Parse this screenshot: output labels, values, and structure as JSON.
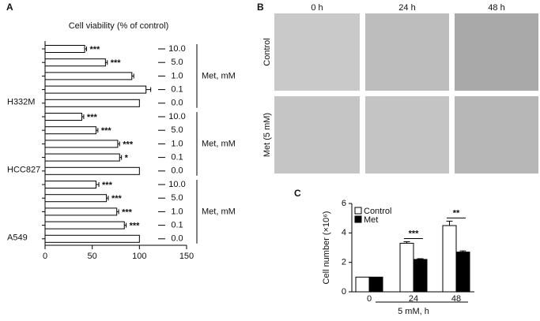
{
  "chart_data": [
    {
      "type": "hbar-groups",
      "panel": "A",
      "title": "Cell viability (% of control)",
      "xlim": [
        0,
        150
      ],
      "xticks": [
        0,
        50,
        100,
        150
      ],
      "groups": [
        {
          "name": "H332M",
          "treatment_label": "Met, mM",
          "categories": [
            "10.0",
            "5.0",
            "1.0",
            "0.1",
            "0.0"
          ],
          "values": [
            42,
            64,
            92,
            107,
            100
          ],
          "errors": [
            2,
            2,
            2,
            5,
            0
          ],
          "annotations": [
            "***",
            "***",
            null,
            null,
            null
          ]
        },
        {
          "name": "HCC827",
          "treatment_label": "Met, mM",
          "categories": [
            "10.0",
            "5.0",
            "1.0",
            "0.1",
            "0.0"
          ],
          "values": [
            39,
            54,
            77,
            79,
            100
          ],
          "errors": [
            2,
            2,
            2,
            2,
            0
          ],
          "annotations": [
            "***",
            "***",
            "***",
            "*",
            null
          ]
        },
        {
          "name": "A549",
          "treatment_label": "Met, mM",
          "categories": [
            "10.0",
            "5.0",
            "1.0",
            "0.1",
            "0.0"
          ],
          "values": [
            54,
            65,
            76,
            84,
            100
          ],
          "errors": [
            3,
            2,
            2,
            2,
            0
          ],
          "annotations": [
            "***",
            "***",
            "***",
            "***",
            null
          ]
        }
      ],
      "color": "#ffffff"
    },
    {
      "type": "image-grid",
      "panel": "B",
      "columns": [
        "0 h",
        "24 h",
        "48 h"
      ],
      "rows": [
        "Control",
        "Met (5 mM)"
      ]
    },
    {
      "type": "bar",
      "panel": "C",
      "ylabel": "Cell number (×10⁶)",
      "xlabel": "5 mM, h",
      "categories": [
        "0",
        "24",
        "48"
      ],
      "ylim": [
        0,
        6
      ],
      "yticks": [
        0,
        2,
        4,
        6
      ],
      "series": [
        {
          "name": "Control",
          "color": "#ffffff",
          "values": [
            1.0,
            3.3,
            4.5
          ],
          "errors": [
            0,
            0.1,
            0.3
          ]
        },
        {
          "name": "Met",
          "color": "#000000",
          "values": [
            1.0,
            2.2,
            2.7
          ],
          "errors": [
            0,
            0.05,
            0.08
          ]
        }
      ],
      "annotations": [
        null,
        "***",
        "**"
      ]
    }
  ]
}
